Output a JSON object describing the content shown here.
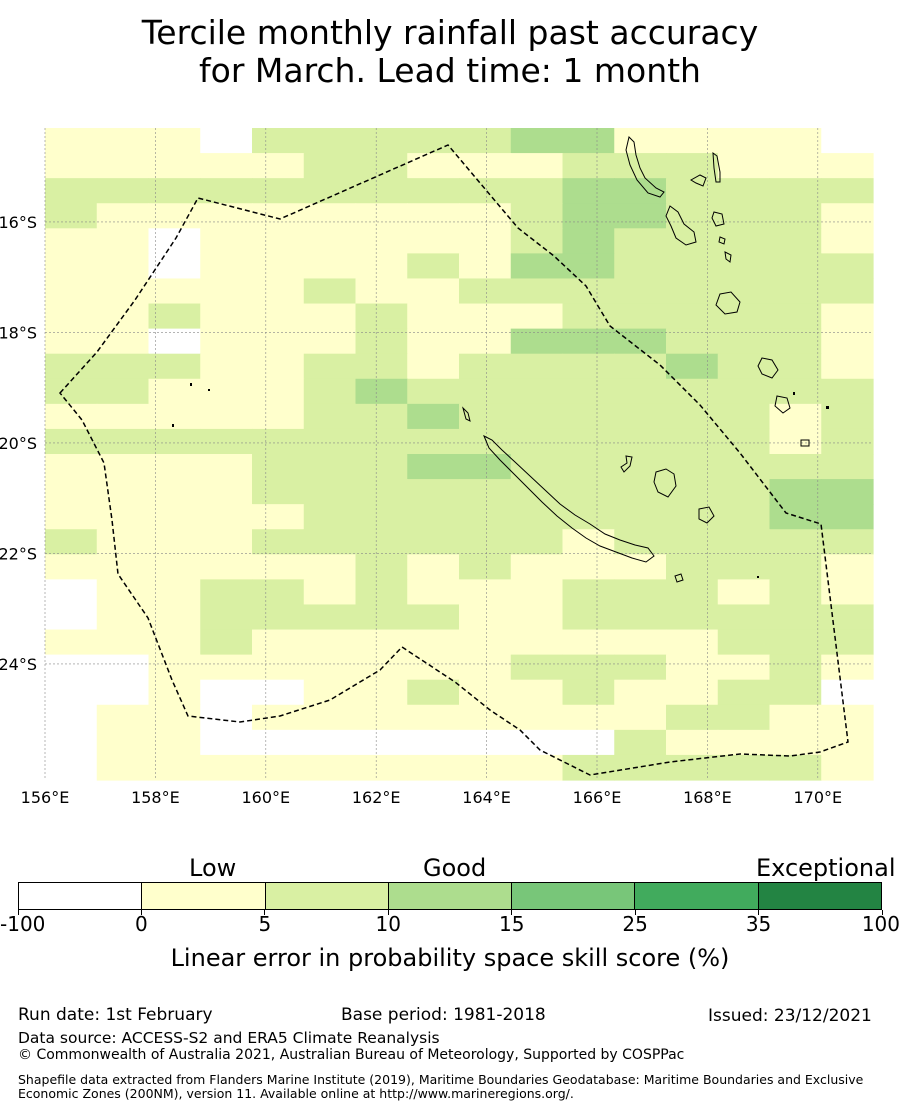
{
  "title_line1": "Tercile monthly rainfall past accuracy",
  "title_line2": "for March. Lead time: 1 month",
  "map": {
    "lon_range": [
      156,
      171
    ],
    "lat_range": [
      -14.3,
      -26.1
    ],
    "lon_ticks": [
      "156°E",
      "158°E",
      "160°E",
      "162°E",
      "164°E",
      "166°E",
      "168°E",
      "170°E"
    ],
    "lat_ticks": [
      "16°S",
      "18°S",
      "20°S",
      "22°S",
      "24°S"
    ],
    "colors": [
      "#ffffff",
      "#ffffcc",
      "#d9f0a3",
      "#addd8e",
      "#78c679",
      "#41ab5d",
      "#238443"
    ],
    "grid_rows": [
      "1110222223311110",
      "1111122111222111",
      "2222222222332222",
      "2111111112332221",
      "1101111112322221",
      "1101111213322222",
      "1111121122222222",
      "1121112111222221",
      "1101112113332221",
      "2221122122223221",
      "2211123222222222",
      "1111122322222212",
      "2222222222222212",
      "1111222332222222",
      "1111222222222233",
      "1111122222222233",
      "2111222222122222",
      "1111112121112221",
      "0112212111222121",
      "0112222211222222",
      "1112111111111222",
      "0011111112221121",
      "0010011211211220",
      "0110111111112211",
      "0110000000021111",
      "0111111111222221"
    ]
  },
  "legend": {
    "low": "Low",
    "good": "Good",
    "exceptional": "Exceptional",
    "ticks": [
      "-100",
      "0",
      "5",
      "10",
      "15",
      "25",
      "35",
      "100"
    ],
    "label": "Linear error in probability space skill score (%)"
  },
  "footer": {
    "run_date": "Run date: 1st February",
    "base_period": "Base period: 1981-2018",
    "issued": "Issued: 23/12/2021",
    "data_source": "Data source: ACCESS-S2 and ERA5 Climate Reanalysis",
    "copyright": "© Commonwealth of Australia 2021, Australian Bureau of Meteorology, Supported by COSPPac",
    "shapefile": "Shapefile data extracted from Flanders Marine Institute (2019), Maritime Boundaries Geodatabase: Maritime Boundaries and Exclusive Economic Zones (200NM), version 11. Available online at http://www.marineregions.org/."
  }
}
